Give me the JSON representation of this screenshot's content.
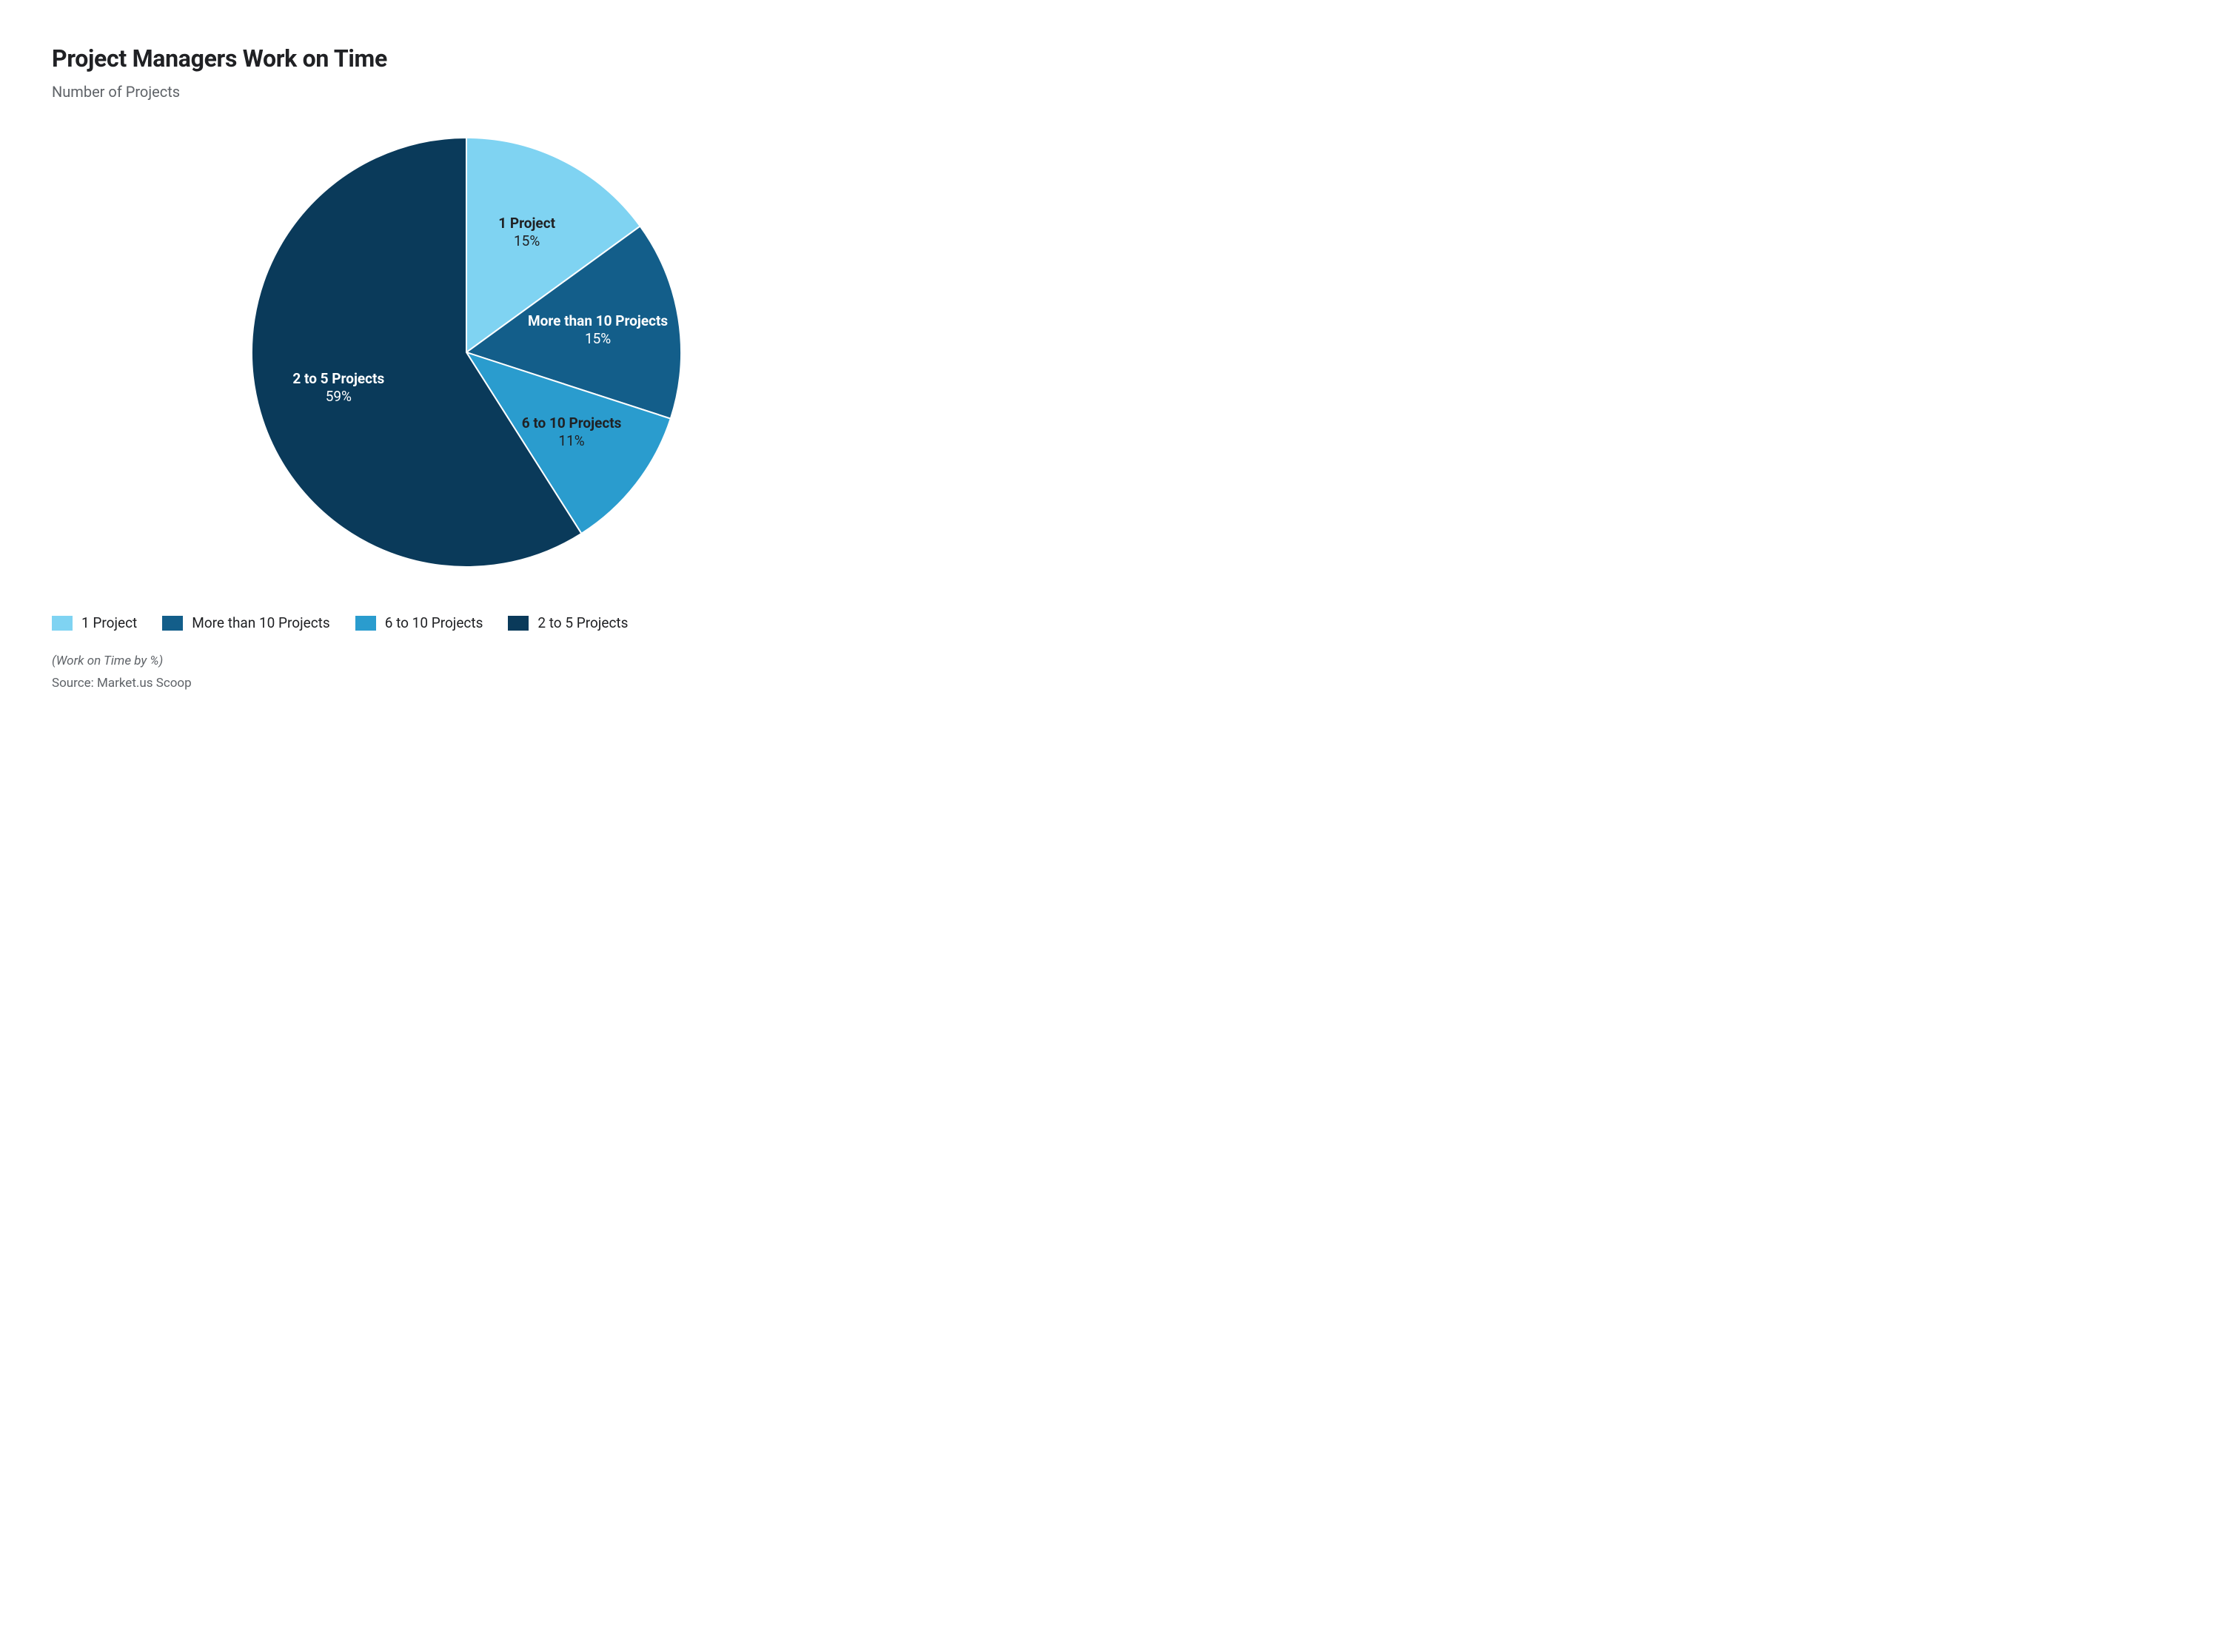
{
  "chart": {
    "type": "pie",
    "title": "Project Managers Work on Time",
    "subtitle": "Number of Projects",
    "footnote": "(Work on Time by %)",
    "source": "Source: Market.us Scoop",
    "background_color": "#ffffff",
    "title_color": "#202124",
    "subtitle_color": "#5f6368",
    "footnote_color": "#5f6368",
    "title_fontsize": 32,
    "subtitle_fontsize": 20,
    "label_fontsize": 19,
    "legend_fontsize": 19,
    "footnote_fontsize": 17,
    "radius": 290,
    "start_angle_deg": -90,
    "label_position_ratio": 0.62,
    "slice_border_color": "#ffffff",
    "slice_border_width": 2,
    "legend_swatch_width": 28,
    "legend_swatch_height": 20,
    "slices": [
      {
        "label": "1 Project",
        "value": 15,
        "value_text": "15%",
        "color": "#7fd3f2",
        "text_color": "#202124"
      },
      {
        "label": "More than 10 Projects",
        "value": 15,
        "value_text": "15%",
        "color": "#135e8a",
        "text_color": "#ffffff"
      },
      {
        "label": "6 to 10 Projects",
        "value": 11,
        "value_text": "11%",
        "color": "#2a9cce",
        "text_color": "#202124"
      },
      {
        "label": "2 to 5 Projects",
        "value": 59,
        "value_text": "59%",
        "color": "#0a3a5a",
        "text_color": "#ffffff"
      }
    ]
  }
}
